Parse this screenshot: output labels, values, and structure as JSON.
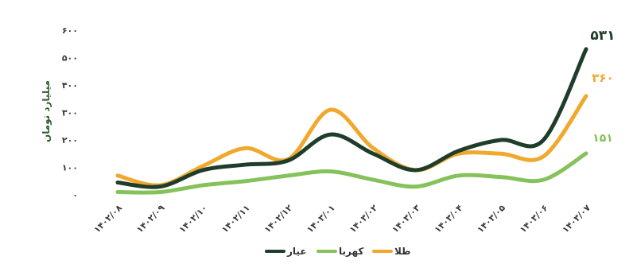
{
  "chart_data": {
    "type": "line",
    "ylabel": "میلیارد تومان",
    "ylim": [
      0,
      600
    ],
    "y_ticks": [
      0,
      100,
      200,
      300,
      400,
      500,
      600
    ],
    "y_tick_labels": [
      "۰",
      "۱۰۰",
      "۲۰۰",
      "۳۰۰",
      "۴۰۰",
      "۵۰۰",
      "۶۰۰"
    ],
    "categories": [
      "۱۴۰۲/۰۸",
      "۱۴۰۲/۰۹",
      "۱۴۰۲/۱۰",
      "۱۴۰۲/۱۱",
      "۱۴۰۲/۱۲",
      "۱۴۰۳/۰۱",
      "۱۴۰۳/۰۲",
      "۱۴۰۳/۰۳",
      "۱۴۰۳/۰۴",
      "۱۴۰۳/۰۵",
      "۱۴۰۳/۰۶",
      "۱۴۰۳/۰۷"
    ],
    "grid": false,
    "legend": "bottom-center",
    "series": [
      {
        "name": "طلا",
        "color": "#f0a92e",
        "values": [
          70,
          35,
          105,
          170,
          130,
          310,
          170,
          90,
          150,
          150,
          140,
          360
        ],
        "end_label": "۳۶۰"
      },
      {
        "name": "کهربا",
        "color": "#86c25b",
        "values": [
          10,
          10,
          35,
          50,
          70,
          85,
          55,
          30,
          70,
          65,
          55,
          151
        ],
        "end_label": "۱۵۱"
      },
      {
        "name": "عیار",
        "color": "#1f3d2b",
        "values": [
          45,
          30,
          90,
          110,
          125,
          220,
          150,
          90,
          160,
          200,
          200,
          531
        ],
        "end_label": "۵۳۱"
      }
    ],
    "legend_order": [
      "عیار",
      "کهربا",
      "طلا"
    ]
  }
}
